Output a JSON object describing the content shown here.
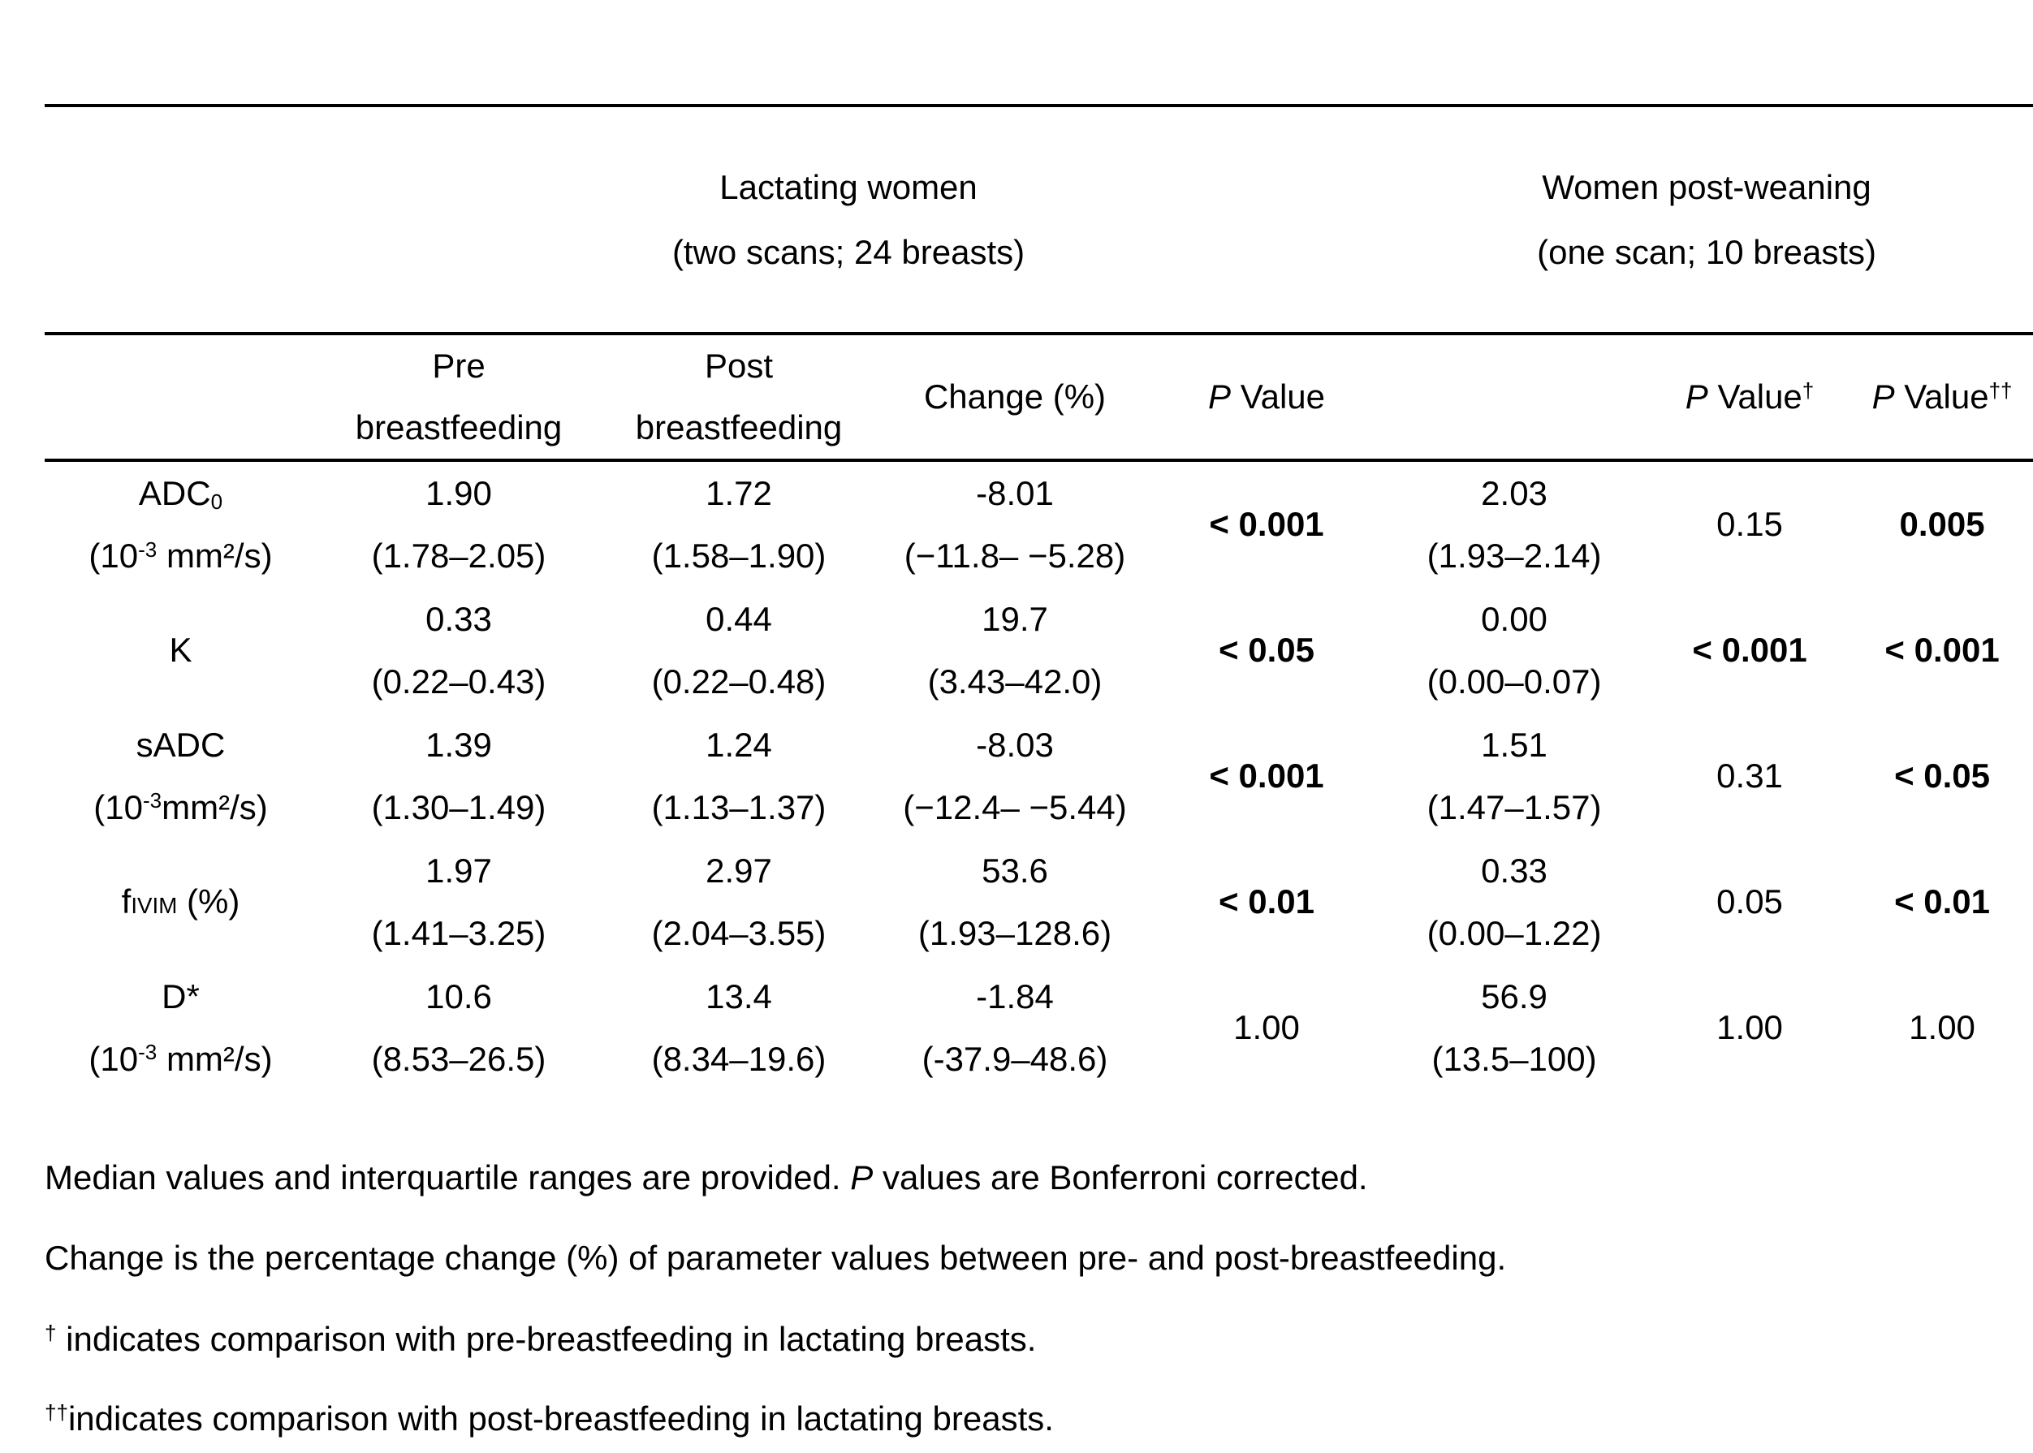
{
  "group_headers": {
    "lactating": {
      "line1": "Lactating women",
      "line2": "(two scans; 24 breasts)"
    },
    "post_weaning": {
      "line1": "Women post-weaning",
      "line2": "(one scan; 10 breasts)"
    }
  },
  "column_headers": {
    "pre": {
      "line1": "Pre",
      "line2": "breastfeeding"
    },
    "post": {
      "line1": "Post",
      "line2": "breastfeeding"
    },
    "change": "Change (%)",
    "p_value": {
      "p": "P",
      "rest": " Value",
      "sup": ""
    },
    "p_value_dagger": {
      "p": "P",
      "rest": " Value",
      "sup": "†"
    },
    "p_value_ddagger": {
      "p": "P",
      "rest": " Value",
      "sup": "††"
    }
  },
  "rows": [
    {
      "label_parts": [
        {
          "t": "ADC"
        },
        {
          "t": "0",
          "s": "sub"
        }
      ],
      "unit_parts": [
        {
          "t": "(10"
        },
        {
          "t": "-3",
          "s": "sup"
        },
        {
          "t": " mm²/s)"
        }
      ],
      "pre": {
        "median": "1.90",
        "iqr": "(1.78–2.05)"
      },
      "post": {
        "median": "1.72",
        "iqr": "(1.58–1.90)"
      },
      "change": {
        "median": "-8.01",
        "iqr": "(−11.8– −5.28)"
      },
      "p": {
        "text": "< 0.001",
        "bold": true
      },
      "pw": {
        "median": "2.03",
        "iqr": "(1.93–2.14)"
      },
      "p_dagger": {
        "text": "0.15",
        "bold": false
      },
      "p_ddagger": {
        "text": "0.005",
        "bold": true
      }
    },
    {
      "label_parts": [
        {
          "t": "K"
        }
      ],
      "unit_parts": [],
      "pre": {
        "median": "0.33",
        "iqr": "(0.22–0.43)"
      },
      "post": {
        "median": "0.44",
        "iqr": "(0.22–0.48)"
      },
      "change": {
        "median": "19.7",
        "iqr": "(3.43–42.0)"
      },
      "p": {
        "text": "< 0.05",
        "bold": true
      },
      "pw": {
        "median": "0.00",
        "iqr": "(0.00–0.07)"
      },
      "p_dagger": {
        "text": "< 0.001",
        "bold": true
      },
      "p_ddagger": {
        "text": "< 0.001",
        "bold": true
      }
    },
    {
      "label_parts": [
        {
          "t": "sADC"
        }
      ],
      "unit_parts": [
        {
          "t": "(10"
        },
        {
          "t": "-3",
          "s": "sup"
        },
        {
          "t": "mm²/s)"
        }
      ],
      "pre": {
        "median": "1.39",
        "iqr": "(1.30–1.49)"
      },
      "post": {
        "median": "1.24",
        "iqr": "(1.13–1.37)"
      },
      "change": {
        "median": "-8.03",
        "iqr": "(−12.4– −5.44)"
      },
      "p": {
        "text": "< 0.001",
        "bold": true
      },
      "pw": {
        "median": "1.51",
        "iqr": "(1.47–1.57)"
      },
      "p_dagger": {
        "text": "0.31",
        "bold": false
      },
      "p_ddagger": {
        "text": "< 0.05",
        "bold": true
      }
    },
    {
      "label_parts": [
        {
          "t": "f"
        },
        {
          "t": "IVIM",
          "s": "sc"
        },
        {
          "t": " (%)"
        }
      ],
      "unit_parts": [],
      "pre": {
        "median": "1.97",
        "iqr": "(1.41–3.25)"
      },
      "post": {
        "median": "2.97",
        "iqr": "(2.04–3.55)"
      },
      "change": {
        "median": "53.6",
        "iqr": "(1.93–128.6)"
      },
      "p": {
        "text": "< 0.01",
        "bold": true
      },
      "pw": {
        "median": "0.33",
        "iqr": "(0.00–1.22)"
      },
      "p_dagger": {
        "text": "0.05",
        "bold": false
      },
      "p_ddagger": {
        "text": "< 0.01",
        "bold": true
      }
    },
    {
      "label_parts": [
        {
          "t": "D*"
        }
      ],
      "unit_parts": [
        {
          "t": "(10"
        },
        {
          "t": "-3",
          "s": "sup"
        },
        {
          "t": " mm²/s)"
        }
      ],
      "pre": {
        "median": "10.6",
        "iqr": "(8.53–26.5)"
      },
      "post": {
        "median": "13.4",
        "iqr": "(8.34–19.6)"
      },
      "change": {
        "median": "-1.84",
        "iqr": "(-37.9–48.6)"
      },
      "p": {
        "text": "1.00",
        "bold": false
      },
      "pw": {
        "median": "56.9",
        "iqr": "(13.5–100)"
      },
      "p_dagger": {
        "text": "1.00",
        "bold": false
      },
      "p_ddagger": {
        "text": "1.00",
        "bold": false
      }
    }
  ],
  "footnotes": {
    "line1": {
      "a": "Median values and interquartile ranges are provided. ",
      "b": "P",
      "c": " values are Bonferroni corrected."
    },
    "line2": "Change is the percentage change (%) of parameter values between pre- and post-breastfeeding.",
    "line3": {
      "sup": "†",
      "text": " indicates comparison with pre-breastfeeding in lactating breasts."
    },
    "line4": {
      "sup": "††",
      "text": "indicates comparison with post-breastfeeding in lactating breasts."
    }
  }
}
